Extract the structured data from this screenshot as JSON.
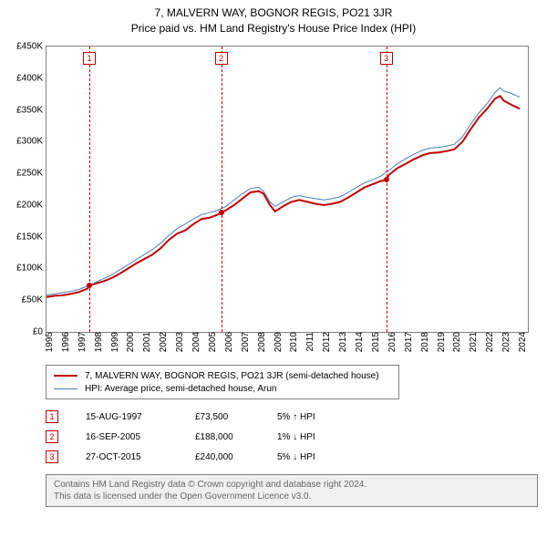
{
  "title_line1": "7, MALVERN WAY, BOGNOR REGIS, PO21 3JR",
  "title_line2": "Price paid vs. HM Land Registry's House Price Index (HPI)",
  "chart": {
    "type": "line",
    "background_color": "#ffffff",
    "axis_color": "#808080",
    "x_years": [
      1995,
      1996,
      1997,
      1998,
      1999,
      2000,
      2001,
      2002,
      2003,
      2004,
      2005,
      2006,
      2007,
      2008,
      2009,
      2010,
      2011,
      2012,
      2013,
      2014,
      2015,
      2016,
      2017,
      2018,
      2019,
      2020,
      2021,
      2022,
      2023,
      2024
    ],
    "xlim": [
      1995,
      2024.5
    ],
    "ylim": [
      0,
      450000
    ],
    "ytick_step": 50000,
    "ytick_labels": [
      "£0",
      "£50K",
      "£100K",
      "£150K",
      "£200K",
      "£250K",
      "£300K",
      "£350K",
      "£400K",
      "£450K"
    ],
    "series": [
      {
        "name": "Subject property",
        "label": "7, MALVERN WAY, BOGNOR REGIS, PO21 3JR (semi-detached house)",
        "color": "#c00000",
        "line_width": 2,
        "values": [
          [
            1995.0,
            55000
          ],
          [
            1995.5,
            57000
          ],
          [
            1996.0,
            58000
          ],
          [
            1996.5,
            60000
          ],
          [
            1997.0,
            63000
          ],
          [
            1997.5,
            68000
          ],
          [
            1997.63,
            73500
          ],
          [
            1998.0,
            76000
          ],
          [
            1998.5,
            80000
          ],
          [
            1999.0,
            85000
          ],
          [
            1999.5,
            92000
          ],
          [
            2000.0,
            100000
          ],
          [
            2000.5,
            108000
          ],
          [
            2001.0,
            115000
          ],
          [
            2001.5,
            122000
          ],
          [
            2002.0,
            132000
          ],
          [
            2002.5,
            145000
          ],
          [
            2003.0,
            155000
          ],
          [
            2003.5,
            160000
          ],
          [
            2004.0,
            170000
          ],
          [
            2004.5,
            178000
          ],
          [
            2005.0,
            180000
          ],
          [
            2005.5,
            185000
          ],
          [
            2005.71,
            188000
          ],
          [
            2006.0,
            192000
          ],
          [
            2006.5,
            200000
          ],
          [
            2007.0,
            210000
          ],
          [
            2007.5,
            220000
          ],
          [
            2008.0,
            222000
          ],
          [
            2008.3,
            218000
          ],
          [
            2008.7,
            200000
          ],
          [
            2009.0,
            190000
          ],
          [
            2009.5,
            198000
          ],
          [
            2010.0,
            205000
          ],
          [
            2010.5,
            208000
          ],
          [
            2011.0,
            205000
          ],
          [
            2011.5,
            202000
          ],
          [
            2012.0,
            200000
          ],
          [
            2012.5,
            202000
          ],
          [
            2013.0,
            205000
          ],
          [
            2013.5,
            212000
          ],
          [
            2014.0,
            220000
          ],
          [
            2014.5,
            228000
          ],
          [
            2015.0,
            233000
          ],
          [
            2015.5,
            238000
          ],
          [
            2015.82,
            240000
          ],
          [
            2016.0,
            248000
          ],
          [
            2016.5,
            258000
          ],
          [
            2017.0,
            265000
          ],
          [
            2017.5,
            272000
          ],
          [
            2018.0,
            278000
          ],
          [
            2018.5,
            282000
          ],
          [
            2019.0,
            283000
          ],
          [
            2019.5,
            285000
          ],
          [
            2020.0,
            288000
          ],
          [
            2020.5,
            300000
          ],
          [
            2021.0,
            320000
          ],
          [
            2021.5,
            338000
          ],
          [
            2022.0,
            352000
          ],
          [
            2022.5,
            368000
          ],
          [
            2022.8,
            372000
          ],
          [
            2023.0,
            365000
          ],
          [
            2023.5,
            358000
          ],
          [
            2024.0,
            352000
          ]
        ]
      },
      {
        "name": "HPI Arun",
        "label": "HPI: Average price, semi-detached house, Arun",
        "color": "#4a7ebb",
        "line_width": 1,
        "values": [
          [
            1995.0,
            58000
          ],
          [
            1995.5,
            60000
          ],
          [
            1996.0,
            62000
          ],
          [
            1996.5,
            64000
          ],
          [
            1997.0,
            67000
          ],
          [
            1997.5,
            72000
          ],
          [
            1998.0,
            78000
          ],
          [
            1998.5,
            84000
          ],
          [
            1999.0,
            90000
          ],
          [
            1999.5,
            98000
          ],
          [
            2000.0,
            106000
          ],
          [
            2000.5,
            114000
          ],
          [
            2001.0,
            122000
          ],
          [
            2001.5,
            130000
          ],
          [
            2002.0,
            140000
          ],
          [
            2002.5,
            152000
          ],
          [
            2003.0,
            163000
          ],
          [
            2003.5,
            170000
          ],
          [
            2004.0,
            178000
          ],
          [
            2004.5,
            185000
          ],
          [
            2005.0,
            188000
          ],
          [
            2005.5,
            192000
          ],
          [
            2006.0,
            198000
          ],
          [
            2006.5,
            208000
          ],
          [
            2007.0,
            218000
          ],
          [
            2007.5,
            226000
          ],
          [
            2008.0,
            228000
          ],
          [
            2008.3,
            222000
          ],
          [
            2008.7,
            205000
          ],
          [
            2009.0,
            198000
          ],
          [
            2009.5,
            205000
          ],
          [
            2010.0,
            212000
          ],
          [
            2010.5,
            215000
          ],
          [
            2011.0,
            212000
          ],
          [
            2011.5,
            210000
          ],
          [
            2012.0,
            208000
          ],
          [
            2012.5,
            210000
          ],
          [
            2013.0,
            213000
          ],
          [
            2013.5,
            220000
          ],
          [
            2014.0,
            228000
          ],
          [
            2014.5,
            235000
          ],
          [
            2015.0,
            240000
          ],
          [
            2015.5,
            246000
          ],
          [
            2016.0,
            255000
          ],
          [
            2016.5,
            265000
          ],
          [
            2017.0,
            273000
          ],
          [
            2017.5,
            280000
          ],
          [
            2018.0,
            286000
          ],
          [
            2018.5,
            290000
          ],
          [
            2019.0,
            291000
          ],
          [
            2019.5,
            293000
          ],
          [
            2020.0,
            296000
          ],
          [
            2020.5,
            308000
          ],
          [
            2021.0,
            328000
          ],
          [
            2021.5,
            345000
          ],
          [
            2022.0,
            360000
          ],
          [
            2022.5,
            378000
          ],
          [
            2022.8,
            385000
          ],
          [
            2023.0,
            380000
          ],
          [
            2023.5,
            376000
          ],
          [
            2024.0,
            370000
          ]
        ]
      }
    ],
    "transactions": [
      {
        "n": "1",
        "year": 1997.63,
        "price": 73500
      },
      {
        "n": "2",
        "year": 2005.71,
        "price": 188000
      },
      {
        "n": "3",
        "year": 2015.82,
        "price": 240000
      }
    ],
    "marker_color": "#c00000",
    "point_color": "#c00000"
  },
  "legend_items": [
    {
      "color": "#c00000",
      "width": 2
    },
    {
      "color": "#4a7ebb",
      "width": 1
    }
  ],
  "transactions_table": [
    {
      "n": "1",
      "date": "15-AUG-1997",
      "price": "£73,500",
      "hpi": "5% ↑ HPI"
    },
    {
      "n": "2",
      "date": "16-SEP-2005",
      "price": "£188,000",
      "hpi": "1% ↓ HPI"
    },
    {
      "n": "3",
      "date": "27-OCT-2015",
      "price": "£240,000",
      "hpi": "5% ↓ HPI"
    }
  ],
  "attribution_line1": "Contains HM Land Registry data © Crown copyright and database right 2024.",
  "attribution_line2": "This data is licensed under the Open Government Licence v3.0."
}
